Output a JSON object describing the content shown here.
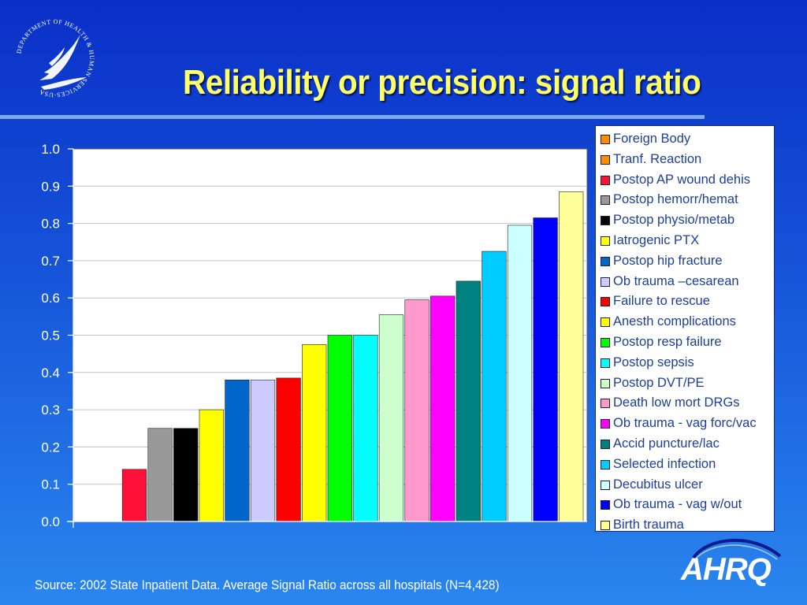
{
  "slide": {
    "title": "Reliability or precision: signal ratio",
    "source": "Source: 2002 State Inpatient Data. Average Signal Ratio across all hospitals (N=4,428)",
    "seal_text": "DEPARTMENT OF HEALTH & HUMAN SERVICES·USA",
    "logo_text": "AHRQ",
    "colors": {
      "title": "#ffff66",
      "background": "#1654d9"
    }
  },
  "chart_data": {
    "type": "bar",
    "ylim": [
      0,
      1
    ],
    "yticks": [
      "0.0",
      "0.1",
      "0.2",
      "0.3",
      "0.4",
      "0.5",
      "0.6",
      "0.7",
      "0.8",
      "0.9",
      "1.0"
    ],
    "grid": true,
    "legend_position": "right",
    "series": [
      {
        "name": "Foreign Body",
        "value": null,
        "color": "#ff8c00"
      },
      {
        "name": "Tranf. Reaction",
        "value": null,
        "color": "#ff8c00"
      },
      {
        "name": "Postop AP wound dehis",
        "value": 0.14,
        "color": "#ff1038"
      },
      {
        "name": "Postop hemorr/hemat",
        "value": 0.25,
        "color": "#999999"
      },
      {
        "name": "Postop physio/metab",
        "value": 0.25,
        "color": "#000000"
      },
      {
        "name": "Iatrogenic PTX",
        "value": 0.3,
        "color": "#ffff00"
      },
      {
        "name": "Postop hip fracture",
        "value": 0.38,
        "color": "#0066cc"
      },
      {
        "name": "Ob trauma –cesarean",
        "value": 0.38,
        "color": "#ccccff"
      },
      {
        "name": "Failure to rescue",
        "value": 0.385,
        "color": "#ff0000"
      },
      {
        "name": "Anesth complications",
        "value": 0.475,
        "color": "#ffff00"
      },
      {
        "name": "Postop resp failure",
        "value": 0.5,
        "color": "#00ff00"
      },
      {
        "name": "Postop sepsis",
        "value": 0.5,
        "color": "#00ffff"
      },
      {
        "name": "Postop DVT/PE",
        "value": 0.555,
        "color": "#ccffcc"
      },
      {
        "name": "Death low mort DRGs",
        "value": 0.595,
        "color": "#ff99cc"
      },
      {
        "name": "Ob trauma - vag forc/vac",
        "value": 0.605,
        "color": "#ff00ff"
      },
      {
        "name": "Accid puncture/lac",
        "value": 0.645,
        "color": "#008080"
      },
      {
        "name": "Selected infection",
        "value": 0.725,
        "color": "#00ccff"
      },
      {
        "name": "Decubitus ulcer",
        "value": 0.795,
        "color": "#ccffff"
      },
      {
        "name": "Ob trauma - vag w/out",
        "value": 0.815,
        "color": "#0000ff"
      },
      {
        "name": "Birth trauma",
        "value": 0.885,
        "color": "#ffff99"
      }
    ]
  }
}
